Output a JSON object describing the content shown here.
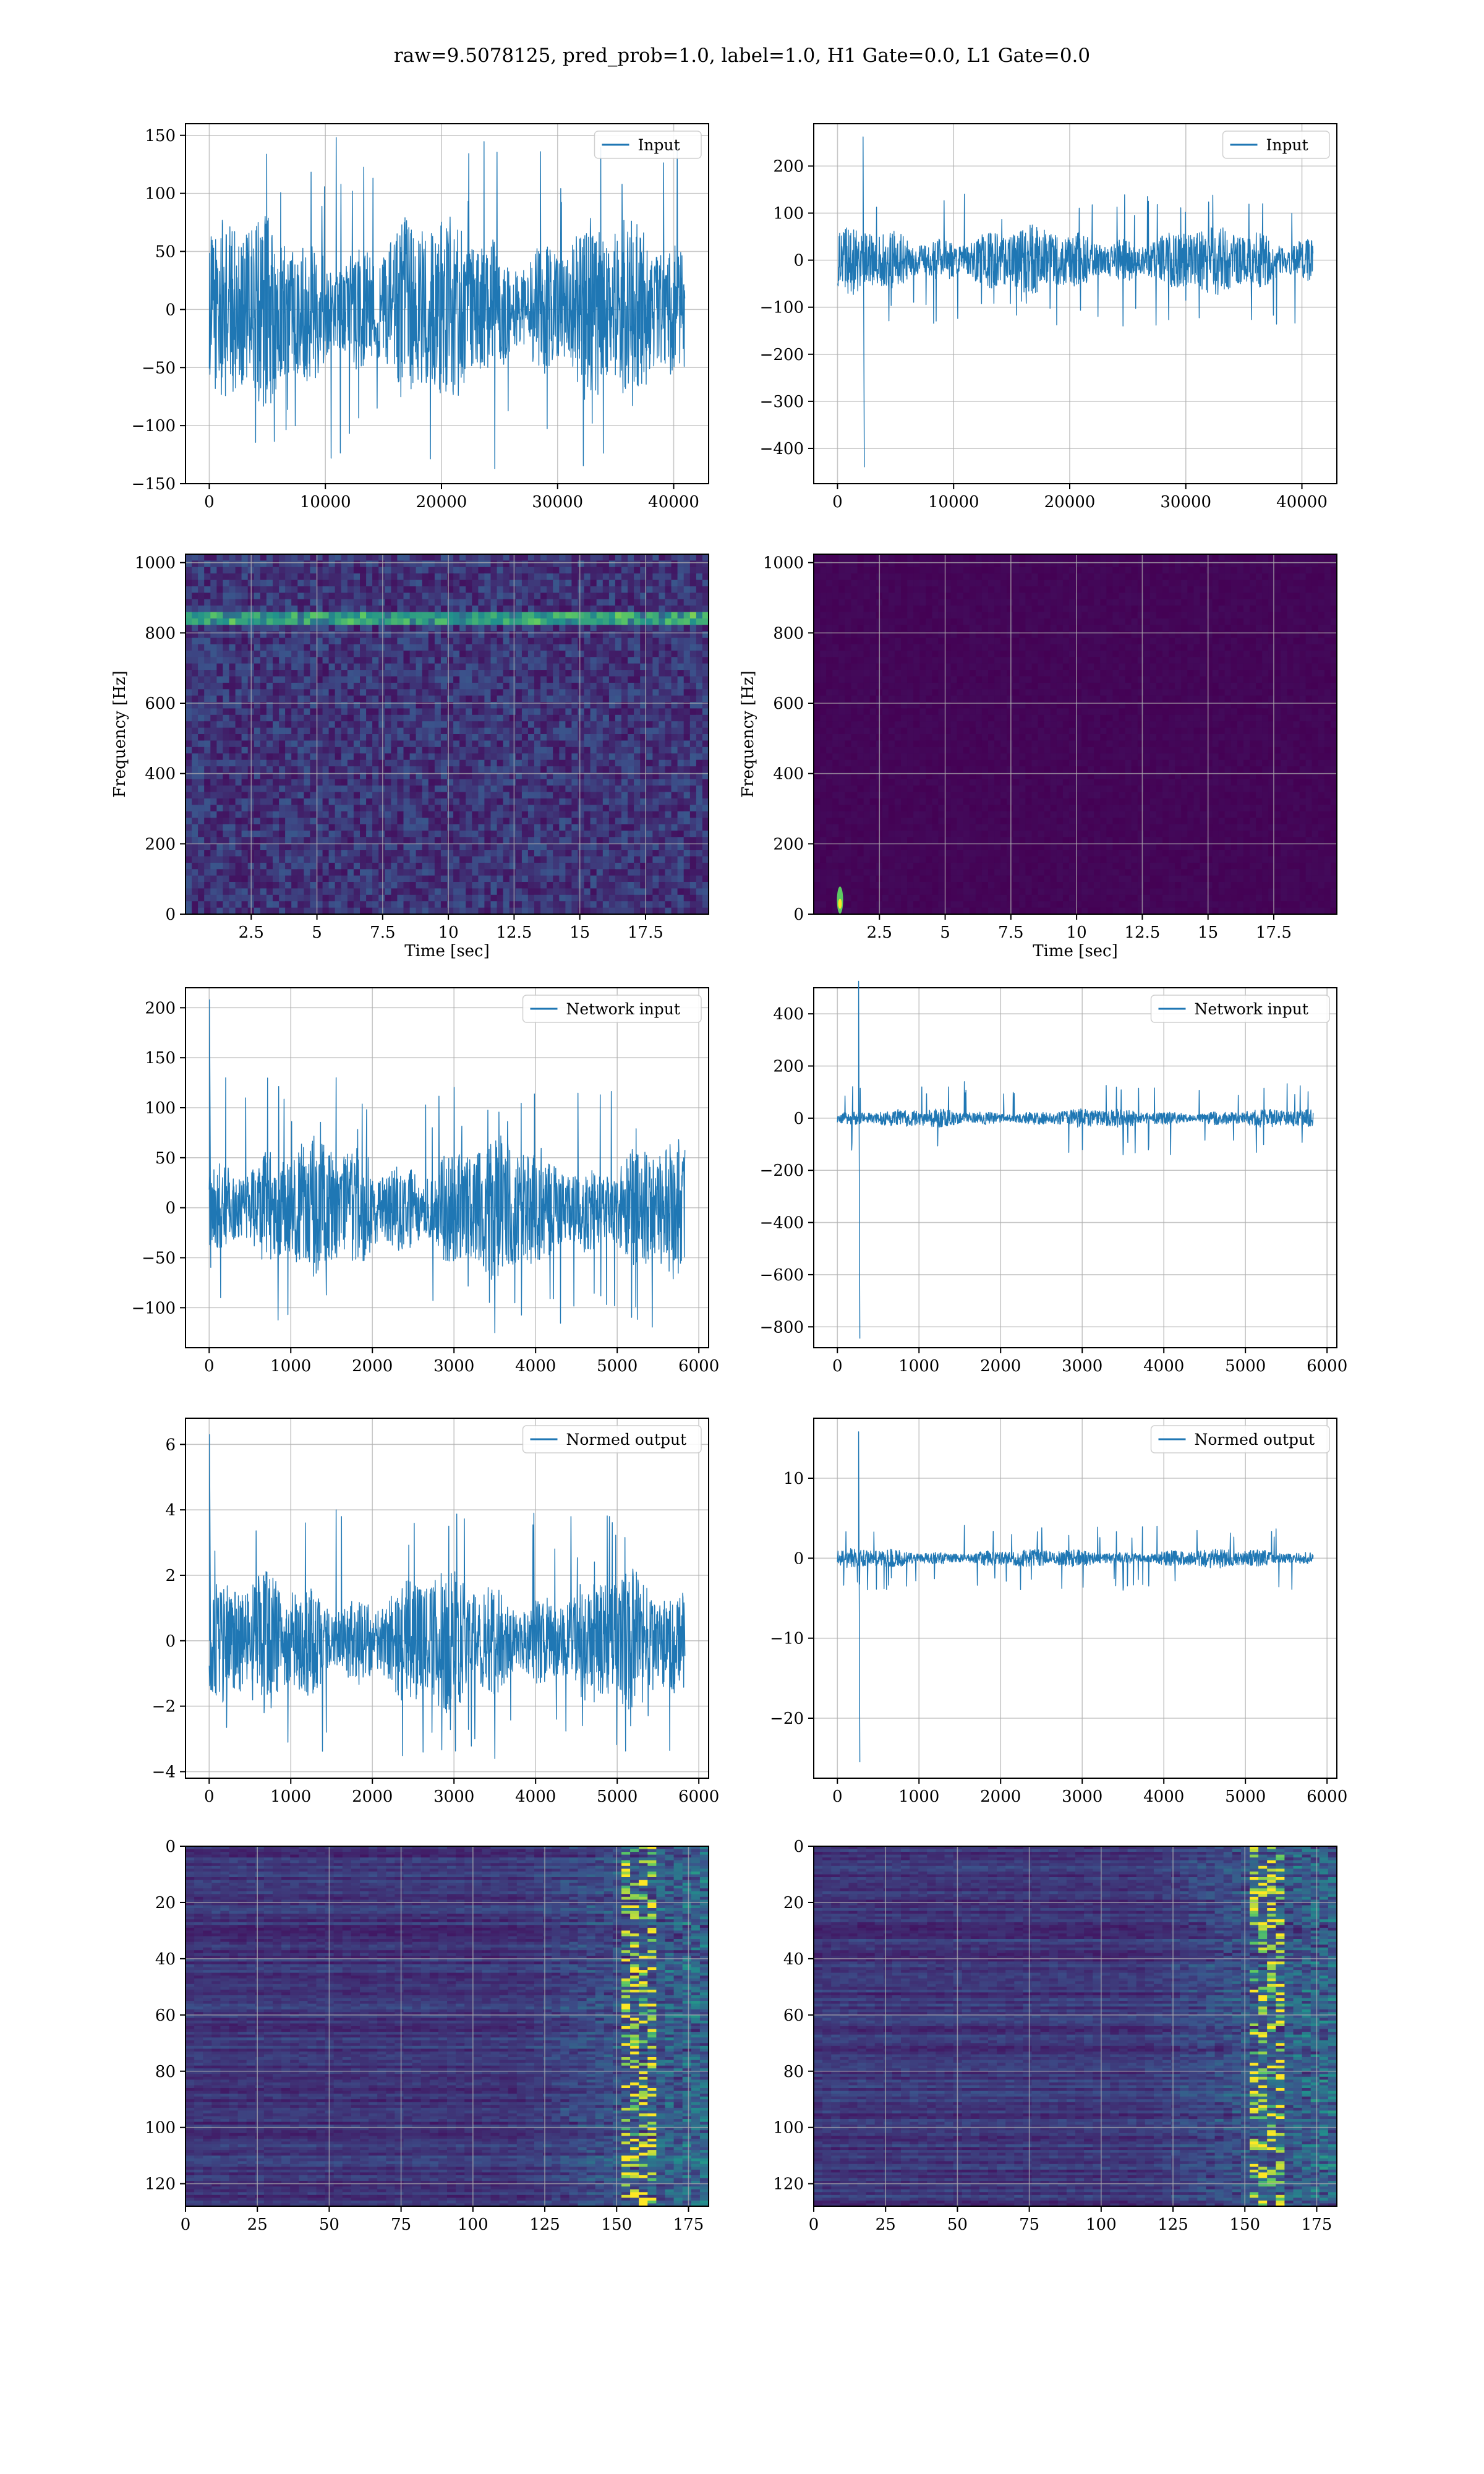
{
  "suptitle": "raw=9.5078125, pred_prob=1.0, label=1.0, H1 Gate=0.0, L1 Gate=0.0",
  "colors": {
    "series": "#1f77b4",
    "colormap_low": "#440154",
    "colormap_high": "#fde725",
    "grid": "#b0b0b0"
  },
  "chart_data": [
    {
      "id": "input-h1",
      "type": "line",
      "legend": "Input",
      "xlim": [
        -2048,
        43008
      ],
      "ylim": [
        -150,
        160
      ],
      "xticks": [
        0,
        10000,
        20000,
        30000,
        40000
      ],
      "yticks": [
        -150,
        -100,
        -50,
        0,
        50,
        100,
        150
      ],
      "signal": {
        "n": 40960,
        "x_start": 0,
        "x_end": 40960,
        "band": 70,
        "peak": 148,
        "min": -137,
        "glitch": null
      }
    },
    {
      "id": "input-l1",
      "type": "line",
      "legend": "Input",
      "xlim": [
        -2048,
        43008
      ],
      "ylim": [
        -475,
        290
      ],
      "xticks": [
        0,
        10000,
        20000,
        30000,
        40000
      ],
      "yticks": [
        -400,
        -300,
        -200,
        -100,
        0,
        100,
        200
      ],
      "signal": {
        "n": 40960,
        "x_start": 0,
        "x_end": 40960,
        "band": 60,
        "peak": 140,
        "min": -140,
        "glitch": {
          "x": 2200,
          "high": 262,
          "low": -440
        }
      }
    },
    {
      "id": "spectrogram-h1",
      "type": "heatmap",
      "xlabel": "Time [sec]",
      "ylabel": "Frequency [Hz]",
      "xlim": [
        0,
        19.9
      ],
      "ylim": [
        0,
        1024
      ],
      "xticks": [
        2.5,
        5.0,
        7.5,
        10.0,
        12.5,
        15.0,
        17.5
      ],
      "yticks": [
        0,
        200,
        400,
        600,
        800,
        1000
      ],
      "texture": "noise",
      "line_hz": 840
    },
    {
      "id": "spectrogram-l1",
      "type": "heatmap",
      "xlabel": "Time [sec]",
      "ylabel": "Frequency [Hz]",
      "xlim": [
        0,
        19.9
      ],
      "ylim": [
        0,
        1024
      ],
      "xticks": [
        2.5,
        5.0,
        7.5,
        10.0,
        12.5,
        15.0,
        17.5
      ],
      "yticks": [
        0,
        200,
        400,
        600,
        800,
        1000
      ],
      "texture": "dark",
      "hotspot": {
        "t": 1.0,
        "f": 40
      }
    },
    {
      "id": "network-input-h1",
      "type": "line",
      "legend": "Network input",
      "xlim": [
        -290,
        6120
      ],
      "ylim": [
        -140,
        220
      ],
      "xticks": [
        0,
        1000,
        2000,
        3000,
        4000,
        5000,
        6000
      ],
      "yticks": [
        -100,
        -50,
        0,
        50,
        100,
        150,
        200
      ],
      "signal": {
        "n": 5830,
        "x_start": 0,
        "x_end": 5830,
        "band": 60,
        "peak": 130,
        "min": -125,
        "glitch": {
          "x": 5,
          "high": 208,
          "low": -60
        }
      }
    },
    {
      "id": "network-input-l1",
      "type": "line",
      "legend": "Network input",
      "xlim": [
        -290,
        6120
      ],
      "ylim": [
        -880,
        500
      ],
      "xticks": [
        0,
        1000,
        2000,
        3000,
        4000,
        5000,
        6000
      ],
      "yticks": [
        -800,
        -600,
        -400,
        -200,
        0,
        200,
        400
      ],
      "signal": {
        "n": 5830,
        "x_start": 0,
        "x_end": 5830,
        "band": 30,
        "peak": 140,
        "min": -140,
        "glitch": {
          "x": 260,
          "high": 525,
          "low": -845
        }
      }
    },
    {
      "id": "normed-output-h1",
      "type": "line",
      "legend": "Normed output",
      "xlim": [
        -290,
        6120
      ],
      "ylim": [
        -4.2,
        6.8
      ],
      "xticks": [
        0,
        1000,
        2000,
        3000,
        4000,
        5000,
        6000
      ],
      "yticks": [
        -4,
        -2,
        0,
        2,
        4,
        6
      ],
      "signal": {
        "n": 5830,
        "x_start": 0,
        "x_end": 5830,
        "band": 1.8,
        "peak": 4.0,
        "min": -3.6,
        "glitch": {
          "x": 5,
          "high": 6.3,
          "low": -1.5
        }
      }
    },
    {
      "id": "normed-output-l1",
      "type": "line",
      "legend": "Normed output",
      "xlim": [
        -290,
        6120
      ],
      "ylim": [
        -27.5,
        17.5
      ],
      "xticks": [
        0,
        1000,
        2000,
        3000,
        4000,
        5000,
        6000
      ],
      "yticks": [
        -20,
        -10,
        0,
        10
      ],
      "signal": {
        "n": 5830,
        "x_start": 0,
        "x_end": 5830,
        "band": 1.0,
        "peak": 4.1,
        "min": -4.0,
        "glitch": {
          "x": 260,
          "high": 15.8,
          "low": -25.5
        }
      }
    },
    {
      "id": "feature-map-h1",
      "type": "heatmap",
      "xlim": [
        0,
        182
      ],
      "ylim": [
        128,
        0
      ],
      "xticks": [
        0,
        25,
        50,
        75,
        100,
        125,
        150,
        175
      ],
      "yticks": [
        0,
        20,
        40,
        60,
        80,
        100,
        120
      ],
      "texture": "rows"
    },
    {
      "id": "feature-map-l1",
      "type": "heatmap",
      "xlim": [
        0,
        182
      ],
      "ylim": [
        128,
        0
      ],
      "xticks": [
        0,
        25,
        50,
        75,
        100,
        125,
        150,
        175
      ],
      "yticks": [
        0,
        20,
        40,
        60,
        80,
        100,
        120
      ],
      "texture": "rows"
    }
  ]
}
